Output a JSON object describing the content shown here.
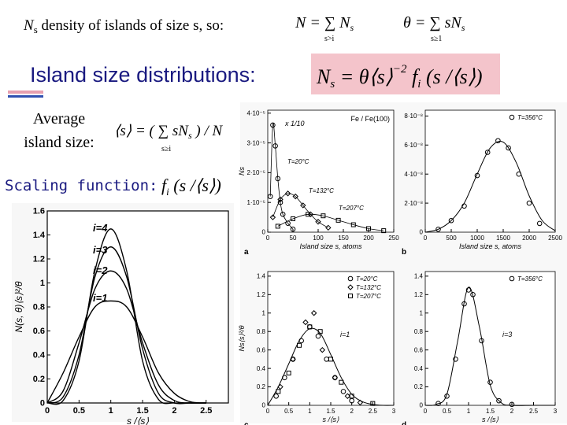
{
  "slide": {
    "intro": {
      "sym": "N",
      "sub": "s",
      "rest": " density of islands of size s, so:"
    },
    "sum_N": {
      "main": "N = ∑ N",
      "subscript": "s",
      "index": "s>i"
    },
    "sum_theta": {
      "main": "θ = ∑ sN",
      "subscript": "s",
      "index": "s≥1"
    },
    "title": "Island size distributions:",
    "scaling_formula": {
      "text1": "N",
      "sub1": "s",
      "text2": " = θ⟨s⟩",
      "sup": "−2",
      "text3": " f",
      "sub2": "i",
      "text4": " (s /⟨s⟩)"
    },
    "average_label": [
      "Average",
      "island size:"
    ],
    "avg_formula": {
      "main": "⟨s⟩ = ( ∑ sN",
      "subscript": "s",
      "index": "s≥i",
      "tail": " ) / N"
    },
    "scaling_label": "Scaling function:",
    "scaling_fn_formula": {
      "text1": "f",
      "sub": "i",
      "text2": " (s /⟨s⟩)"
    }
  },
  "chart_data": [
    {
      "type": "line",
      "xlabel": "s /⟨s⟩",
      "ylabel": "N(s, θ)⟨s⟩²/θ",
      "x": [
        0,
        0.25,
        0.5,
        0.75,
        1,
        1.25,
        1.5,
        1.75,
        2,
        2.25,
        2.5
      ],
      "series": [
        {
          "name": "i=4",
          "color": "#000000",
          "values": [
            0,
            0.02,
            0.35,
            1.1,
            1.45,
            1.1,
            0.35,
            0.03,
            0,
            0,
            0
          ]
        },
        {
          "name": "i=3",
          "color": "#000000",
          "values": [
            0,
            0.05,
            0.4,
            1.05,
            1.3,
            1.05,
            0.45,
            0.08,
            0,
            0,
            0
          ]
        },
        {
          "name": "i=2",
          "color": "#000000",
          "values": [
            0,
            0.1,
            0.5,
            0.95,
            1.1,
            0.95,
            0.5,
            0.15,
            0.02,
            0,
            0
          ]
        },
        {
          "name": "i=1",
          "color": "#000000",
          "values": [
            0,
            0.25,
            0.55,
            0.8,
            0.85,
            0.8,
            0.55,
            0.25,
            0.08,
            0.01,
            0
          ]
        }
      ],
      "xlim": [
        0,
        2.85
      ],
      "xticks": [
        0,
        0.5,
        1,
        1.5,
        2,
        2.5
      ],
      "ylim": [
        0,
        1.6
      ],
      "yticks": [
        0,
        0.2,
        0.4,
        0.6,
        0.8,
        1,
        1.2,
        1.4,
        1.6
      ]
    },
    {
      "type": "scatter",
      "title": "Fe / Fe(100)",
      "panel_label": "a",
      "xlabel": "Island size  s, atoms",
      "ylabel": "Ns",
      "annotations": [
        "x 1/10"
      ],
      "legend": "inline",
      "connect": true,
      "series": [
        {
          "name": "T=20°C",
          "marker": "circle",
          "x": [
            5,
            10,
            15,
            20,
            25,
            30,
            40,
            50
          ],
          "values": [
            1.2e-05,
            3.6e-05,
            2.9e-05,
            1.8e-05,
            1e-05,
            6e-06,
            3e-06,
            1e-06
          ]
        },
        {
          "name": "T=132°C",
          "marker": "diamond",
          "x": [
            10,
            25,
            40,
            55,
            70,
            85,
            100,
            120
          ],
          "values": [
            5e-06,
            1.1e-05,
            1.3e-05,
            1.2e-05,
            9e-06,
            6e-06,
            3.5e-06,
            1.5e-06
          ]
        },
        {
          "name": "T=207°C",
          "marker": "square",
          "x": [
            20,
            50,
            80,
            110,
            140,
            170,
            200,
            230
          ],
          "values": [
            2e-06,
            4.5e-06,
            6e-06,
            5.5e-06,
            4e-06,
            2.5e-06,
            1.2e-06,
            5e-07
          ]
        }
      ],
      "xlim": [
        0,
        250
      ],
      "xticks": [
        0,
        50,
        100,
        150,
        200,
        250
      ],
      "ylim": [
        0,
        4.1e-05
      ],
      "yticks": [
        0,
        {
          "value": 1e-05,
          "label": "1·10⁻⁵"
        },
        {
          "value": 2e-05,
          "label": "2·10⁻⁵"
        },
        {
          "value": 3e-05,
          "label": "3·10⁻⁵"
        },
        {
          "value": 4e-05,
          "label": "4·10⁻⁵"
        }
      ]
    },
    {
      "type": "scatter",
      "panel_label": "b",
      "xlabel": "Island size  s, atoms",
      "legend": "upper right",
      "series": [
        {
          "name": "T=356°C",
          "marker": "circle",
          "x": [
            250,
            500,
            750,
            1000,
            1200,
            1400,
            1600,
            1800,
            2000,
            2200
          ],
          "values": [
            2e-09,
            8e-09,
            1.8e-08,
            3.9e-08,
            5.5e-08,
            6.3e-08,
            5.8e-08,
            4e-08,
            2e-08,
            6e-09
          ]
        }
      ],
      "curve": {
        "x": [
          0,
          250,
          500,
          750,
          1000,
          1250,
          1500,
          1750,
          2000,
          2250,
          2500
        ],
        "values": [
          0,
          2e-09,
          8e-09,
          2e-08,
          4e-08,
          5.8e-08,
          6.2e-08,
          4.8e-08,
          2.5e-08,
          8e-09,
          1e-09
        ]
      },
      "xlim": [
        0,
        2500
      ],
      "xticks": [
        0,
        500,
        1000,
        1500,
        2000,
        2500
      ],
      "ylim": [
        0,
        8.4e-08
      ],
      "yticks": [
        0,
        {
          "value": 2e-08,
          "label": "2·10⁻⁸"
        },
        {
          "value": 4e-08,
          "label": "4·10⁻⁸"
        },
        {
          "value": 6e-08,
          "label": "6·10⁻⁸"
        },
        {
          "value": 8e-08,
          "label": "8·10⁻⁸"
        }
      ]
    },
    {
      "type": "scatter",
      "panel_label": "c",
      "xlabel": "s /⟨s⟩",
      "ylabel": "Ns⟨s⟩²/θ",
      "annotations": [
        "i=1"
      ],
      "legend": "upper right",
      "series": [
        {
          "name": "T=20°C",
          "marker": "circle",
          "x": [
            0.2,
            0.4,
            0.6,
            0.8,
            1.0,
            1.2,
            1.4,
            1.6,
            1.8,
            2.0
          ],
          "values": [
            0.1,
            0.3,
            0.5,
            0.7,
            0.85,
            0.75,
            0.5,
            0.3,
            0.15,
            0.05
          ]
        },
        {
          "name": "T=132°C",
          "marker": "diamond",
          "x": [
            0.3,
            0.6,
            0.9,
            1.1,
            1.3,
            1.6,
            1.9,
            2.2
          ],
          "values": [
            0.2,
            0.5,
            0.9,
            1.0,
            0.6,
            0.3,
            0.1,
            0.03
          ]
        },
        {
          "name": "T=207°C",
          "marker": "square",
          "x": [
            0.25,
            0.5,
            0.75,
            1.0,
            1.25,
            1.5,
            1.75,
            2.0,
            2.5
          ],
          "values": [
            0.15,
            0.35,
            0.65,
            0.85,
            0.8,
            0.5,
            0.25,
            0.1,
            0.02
          ]
        }
      ],
      "curve": {
        "x": [
          0,
          0.25,
          0.5,
          0.75,
          1,
          1.25,
          1.5,
          1.75,
          2,
          2.25,
          2.5,
          2.75,
          3
        ],
        "values": [
          0,
          0.2,
          0.45,
          0.7,
          0.83,
          0.78,
          0.55,
          0.3,
          0.12,
          0.04,
          0.01,
          0,
          0
        ]
      },
      "xlim": [
        0,
        3
      ],
      "xticks": [
        0,
        0.5,
        1,
        1.5,
        2,
        2.5,
        3
      ],
      "ylim": [
        0,
        1.45
      ],
      "yticks": [
        0,
        0.2,
        0.4,
        0.6,
        0.8,
        1,
        1.2,
        1.4
      ]
    },
    {
      "type": "scatter",
      "panel_label": "d",
      "xlabel": "s /⟨s⟩",
      "annotations": [
        "i=3"
      ],
      "legend": "upper right",
      "series": [
        {
          "name": "T=356°C",
          "marker": "circle",
          "x": [
            0.3,
            0.5,
            0.7,
            0.9,
            1.0,
            1.1,
            1.3,
            1.5,
            1.7,
            2.0
          ],
          "values": [
            0.02,
            0.1,
            0.5,
            1.1,
            1.25,
            1.2,
            0.7,
            0.25,
            0.05,
            0.01
          ]
        }
      ],
      "curve": {
        "x": [
          0,
          0.25,
          0.5,
          0.75,
          1,
          1.25,
          1.5,
          1.75,
          2,
          2.5,
          3
        ],
        "values": [
          0,
          0.01,
          0.12,
          0.7,
          1.28,
          0.85,
          0.22,
          0.03,
          0,
          0,
          0
        ]
      },
      "xlim": [
        0,
        3
      ],
      "xticks": [
        0,
        0.5,
        1,
        1.5,
        2,
        2.5,
        3
      ],
      "ylim": [
        0,
        1.45
      ],
      "yticks": [
        0,
        0.2,
        0.4,
        0.6,
        0.8,
        1,
        1.2,
        1.4
      ]
    }
  ]
}
